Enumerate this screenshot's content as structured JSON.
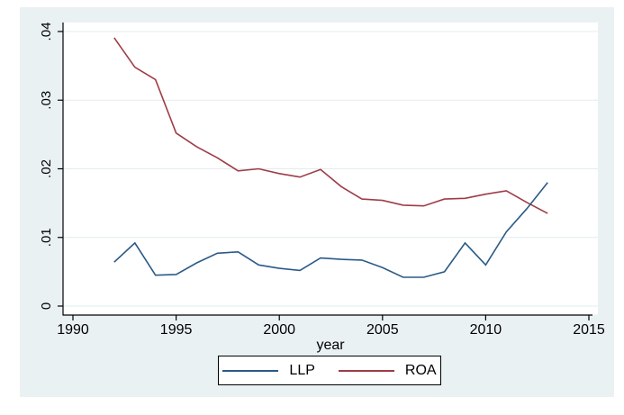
{
  "colors": {
    "figure_background": "#eaf1f3",
    "plot_background": "#ffffff",
    "gridline": "#e2ecee",
    "axis": "#000000",
    "tick_text": "#000000",
    "legend_border": "#000000",
    "legend_background": "#ffffff"
  },
  "chart_data": {
    "type": "line",
    "title": "",
    "xlabel": "year",
    "ylabel": "",
    "xlim": [
      1990,
      2015
    ],
    "ylim": [
      0,
      0.04
    ],
    "grid": true,
    "legend_position": "bottom-center",
    "x_ticks": [
      {
        "v": 1990,
        "label": "1990"
      },
      {
        "v": 1995,
        "label": "1995"
      },
      {
        "v": 2000,
        "label": "2000"
      },
      {
        "v": 2005,
        "label": "2005"
      },
      {
        "v": 2010,
        "label": "2010"
      },
      {
        "v": 2015,
        "label": "2015"
      }
    ],
    "y_ticks": [
      {
        "v": 0,
        "label": "0"
      },
      {
        "v": 0.01,
        "label": ".01"
      },
      {
        "v": 0.02,
        "label": ".02"
      },
      {
        "v": 0.03,
        "label": ".03"
      },
      {
        "v": 0.04,
        "label": ".04"
      }
    ],
    "x": [
      1992,
      1993,
      1994,
      1995,
      1996,
      1997,
      1998,
      1999,
      2000,
      2001,
      2002,
      2003,
      2004,
      2005,
      2006,
      2007,
      2008,
      2009,
      2010,
      2011,
      2012,
      2013
    ],
    "series": [
      {
        "name": "LLP",
        "color": "#2b5a86",
        "values": [
          0.0064,
          0.0092,
          0.0045,
          0.0046,
          0.0063,
          0.0077,
          0.0079,
          0.006,
          0.0055,
          0.0052,
          0.007,
          0.0068,
          0.0067,
          0.0056,
          0.0042,
          0.0042,
          0.005,
          0.0092,
          0.006,
          0.0108,
          0.0142,
          0.018
        ]
      },
      {
        "name": "ROA",
        "color": "#9e3c46",
        "values": [
          0.0391,
          0.0348,
          0.033,
          0.0252,
          0.0232,
          0.0216,
          0.0197,
          0.02,
          0.0193,
          0.0188,
          0.0199,
          0.0174,
          0.0156,
          0.0154,
          0.0147,
          0.0146,
          0.0156,
          0.0157,
          0.0163,
          0.0168,
          0.0151,
          0.0135
        ]
      }
    ]
  }
}
